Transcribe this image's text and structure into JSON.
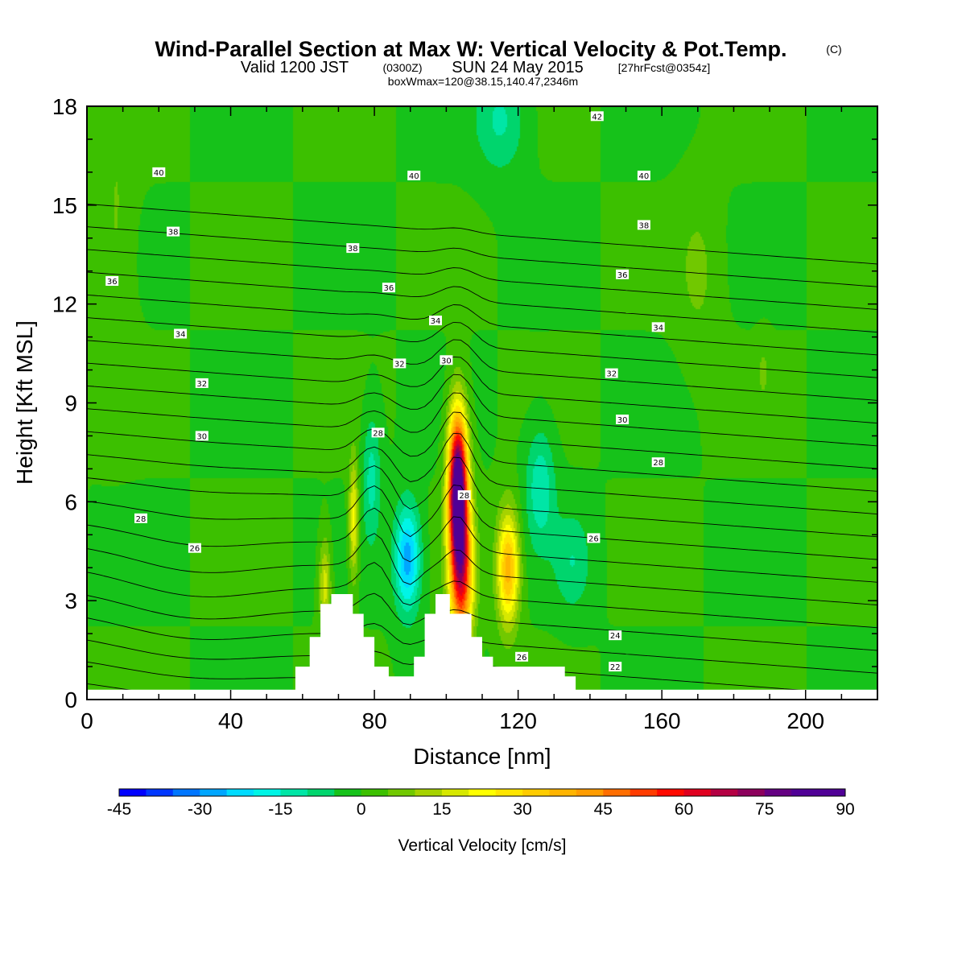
{
  "title": {
    "main": "Wind-Parallel Section at Max W: Vertical Velocity & Pot.Temp.",
    "main_copyright": "(C)",
    "valid_prefix": "Valid 1200 JST",
    "valid_utc": "(0300Z)",
    "valid_date": "SUN 24 May 2015",
    "forecast": "[27hrFcst@0354z]",
    "box": "boxWmax=120@38.15,140.47,2346m"
  },
  "colors": {
    "background_field": "#16c21a",
    "terrain": "#ffffff",
    "contour": "#000000"
  },
  "chart_data": {
    "type": "heatmap",
    "xlabel": "Distance [nm]",
    "ylabel": "Height [Kft MSL]",
    "xlim": [
      0,
      220
    ],
    "ylim": [
      0,
      18
    ],
    "x_ticks": [
      "0",
      "40",
      "80",
      "120",
      "160",
      "200"
    ],
    "y_ticks": [
      "0",
      "3",
      "6",
      "9",
      "12",
      "15",
      "18"
    ],
    "x_tick_values": [
      0,
      40,
      80,
      120,
      160,
      200
    ],
    "y_tick_values": [
      0,
      3,
      6,
      9,
      12,
      15,
      18
    ],
    "colorbar": {
      "title": "Vertical Velocity [cm/s]",
      "min": -45,
      "max": 90,
      "step": 5,
      "labels": [
        "-45",
        "-30",
        "-15",
        "0",
        "15",
        "30",
        "45",
        "60",
        "75",
        "90"
      ],
      "colors": [
        "#0000ff",
        "#0037ff",
        "#0076ff",
        "#00a6ff",
        "#00dbff",
        "#00f5e6",
        "#00e6a6",
        "#00d56d",
        "#16c21a",
        "#3cc000",
        "#71c800",
        "#a6d200",
        "#d7e800",
        "#ffff00",
        "#ffe500",
        "#ffcc00",
        "#ffb400",
        "#ff9c00",
        "#ff6e00",
        "#ff3c00",
        "#ff0a00",
        "#e0001f",
        "#b40043",
        "#8c005c",
        "#640082",
        "#500096"
      ]
    },
    "terrain_profile": {
      "x": [
        0,
        58,
        58,
        62,
        62,
        65,
        65,
        68,
        68,
        74,
        74,
        77,
        77,
        80,
        80,
        84,
        84,
        91,
        91,
        94,
        94,
        97,
        97,
        101,
        101,
        107,
        107,
        110,
        110,
        113,
        113,
        117,
        117,
        123,
        123,
        133,
        133,
        136,
        136,
        220
      ],
      "y": [
        0.3,
        0.3,
        1.0,
        1.0,
        1.9,
        1.9,
        2.9,
        2.9,
        3.2,
        3.2,
        2.6,
        2.6,
        1.9,
        1.9,
        1.0,
        1.0,
        0.7,
        0.7,
        1.3,
        1.3,
        2.6,
        2.6,
        3.2,
        3.2,
        2.6,
        2.6,
        1.9,
        1.9,
        1.3,
        1.3,
        1.0,
        1.0,
        1.0,
        1.0,
        1.0,
        1.0,
        0.7,
        0.7,
        0.3,
        0.3
      ]
    },
    "w_features": [
      {
        "x": 89,
        "y": 4.3,
        "peak": -28,
        "sx": 3.5,
        "sy": 1.6
      },
      {
        "x": 103,
        "y": 6.5,
        "peak": 90,
        "sx": 2.6,
        "sy": 2.2
      },
      {
        "x": 104,
        "y": 3.8,
        "peak": 55,
        "sx": 3.2,
        "sy": 2.2
      },
      {
        "x": 117,
        "y": 4.0,
        "peak": 38,
        "sx": 3.0,
        "sy": 1.7
      },
      {
        "x": 74,
        "y": 5.5,
        "peak": 22,
        "sx": 1.3,
        "sy": 1.8
      },
      {
        "x": 66,
        "y": 3.5,
        "peak": 18,
        "sx": 1.6,
        "sy": 1.4
      },
      {
        "x": 79,
        "y": 6.8,
        "peak": -12,
        "sx": 2.5,
        "sy": 2.0
      },
      {
        "x": 126,
        "y": 6.5,
        "peak": -14,
        "sx": 4.0,
        "sy": 1.8
      },
      {
        "x": 135,
        "y": 4.2,
        "peak": -9,
        "sx": 5.0,
        "sy": 1.5
      },
      {
        "x": 115,
        "y": 17.6,
        "peak": -11,
        "sx": 7,
        "sy": 1.6
      },
      {
        "x": 8,
        "y": 14,
        "peak": 6,
        "sx": 5,
        "sy": 4
      },
      {
        "x": 170,
        "y": 13,
        "peak": 6,
        "sx": 6,
        "sy": 2.5
      },
      {
        "x": 188,
        "y": 10,
        "peak": 5,
        "sx": 2,
        "sy": 1
      }
    ],
    "theta_contours": {
      "levels": [
        21,
        22,
        23,
        24,
        25,
        26,
        27,
        28,
        29,
        30,
        31,
        32,
        33,
        34,
        35,
        36,
        37,
        38,
        39,
        40,
        41,
        42
      ],
      "labels": [
        {
          "text": "22",
          "x": 147,
          "y": 1.0
        },
        {
          "text": "24",
          "x": 147,
          "y": 1.95
        },
        {
          "text": "26",
          "x": 121,
          "y": 1.3
        },
        {
          "text": "26",
          "x": 30,
          "y": 4.6
        },
        {
          "text": "26",
          "x": 141,
          "y": 4.9
        },
        {
          "text": "28",
          "x": 15,
          "y": 5.5
        },
        {
          "text": "28",
          "x": 105,
          "y": 6.2
        },
        {
          "text": "28",
          "x": 81,
          "y": 8.1
        },
        {
          "text": "28",
          "x": 159,
          "y": 7.2
        },
        {
          "text": "30",
          "x": 32,
          "y": 8.0
        },
        {
          "text": "30",
          "x": 100,
          "y": 10.3
        },
        {
          "text": "30",
          "x": 149,
          "y": 8.5
        },
        {
          "text": "32",
          "x": 32,
          "y": 9.6
        },
        {
          "text": "32",
          "x": 87,
          "y": 10.2
        },
        {
          "text": "32",
          "x": 146,
          "y": 9.9
        },
        {
          "text": "34",
          "x": 26,
          "y": 11.1
        },
        {
          "text": "34",
          "x": 97,
          "y": 11.5
        },
        {
          "text": "34",
          "x": 159,
          "y": 11.3
        },
        {
          "text": "36",
          "x": 7,
          "y": 12.7
        },
        {
          "text": "36",
          "x": 84,
          "y": 12.5
        },
        {
          "text": "36",
          "x": 149,
          "y": 12.9
        },
        {
          "text": "38",
          "x": 24,
          "y": 14.2
        },
        {
          "text": "38",
          "x": 74,
          "y": 13.7
        },
        {
          "text": "38",
          "x": 155,
          "y": 14.4
        },
        {
          "text": "40",
          "x": 20,
          "y": 16.0
        },
        {
          "text": "40",
          "x": 91,
          "y": 15.9
        },
        {
          "text": "40",
          "x": 155,
          "y": 15.9
        },
        {
          "text": "42",
          "x": 142,
          "y": 17.7
        }
      ]
    }
  }
}
